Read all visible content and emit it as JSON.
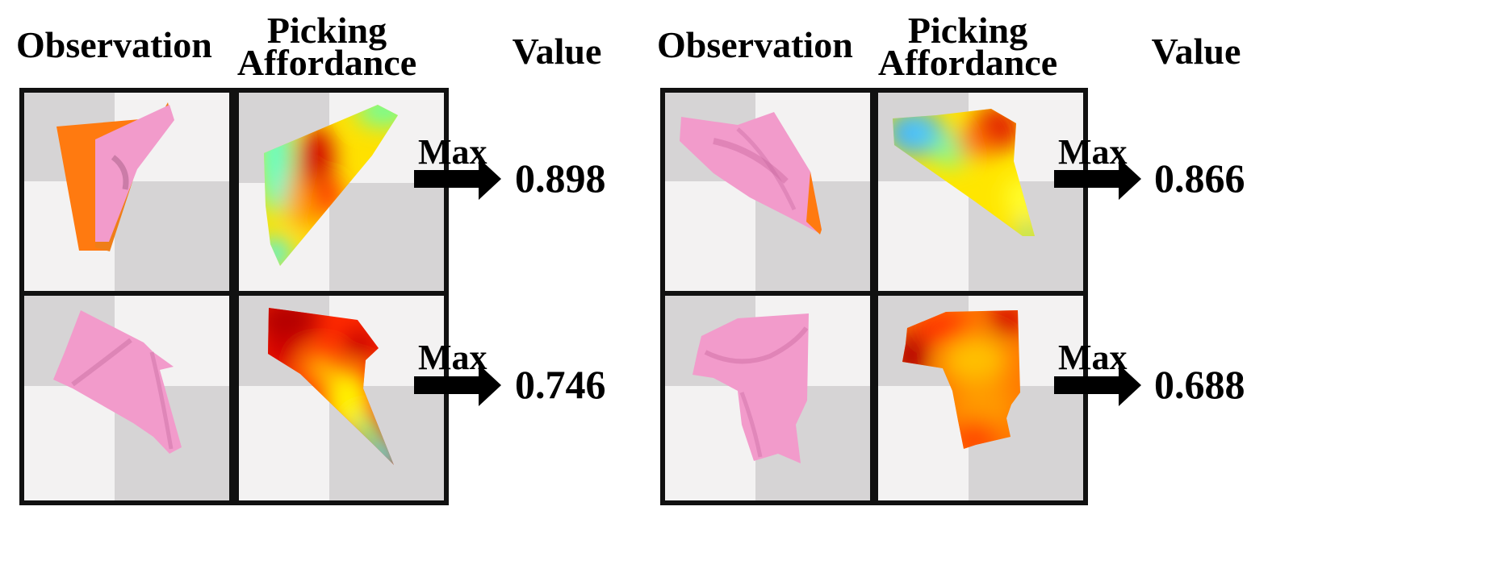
{
  "headers": {
    "observation": "Observation",
    "picking_line1": "Picking",
    "picking_line2": "Affordance",
    "value": "Value"
  },
  "max_label": "Max",
  "panels": [
    {
      "id": "left",
      "rows": [
        {
          "value": "0.898"
        },
        {
          "value": "0.746"
        }
      ]
    },
    {
      "id": "right",
      "rows": [
        {
          "value": "0.866"
        },
        {
          "value": "0.688"
        }
      ]
    }
  ],
  "colors": {
    "cloth_pink": "#f29bcb",
    "cloth_back": "#ff7a10",
    "checker_dark": "#d6d4d5",
    "checker_light": "#f3f2f2",
    "frame": "#111111"
  }
}
